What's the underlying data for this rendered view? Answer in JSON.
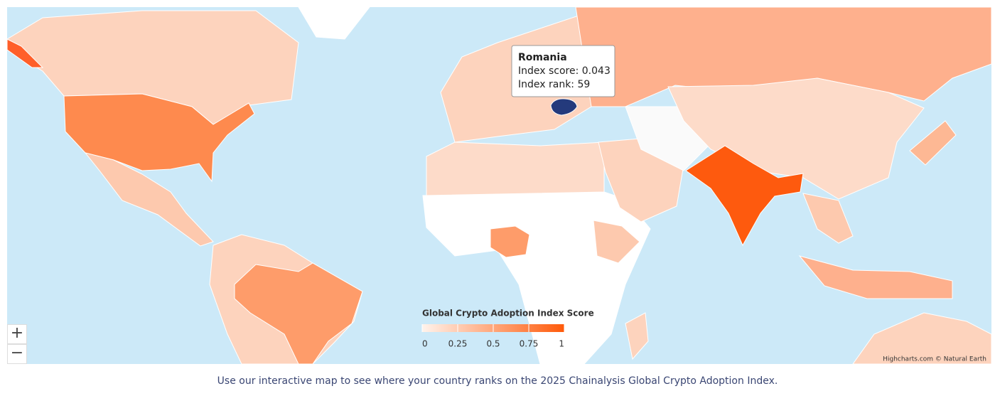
{
  "tooltip": {
    "title": "Romania",
    "lines": [
      "Index score: 0.043",
      "Index rank: 59"
    ]
  },
  "legend": {
    "title": "Global Crypto Adoption Index Score",
    "range": [
      0,
      1
    ],
    "ticks": [
      0,
      0.25,
      0.5,
      0.75,
      1
    ],
    "colors": [
      "#fff3ec",
      "#ff5a0a"
    ]
  },
  "zoom": [
    "+",
    "−"
  ],
  "credits": "Highcharts.com © Natural Earth",
  "caption": "Use our interactive map to see where your country ranks on the 2025 Chainalysis Global Crypto Adoption Index."
}
